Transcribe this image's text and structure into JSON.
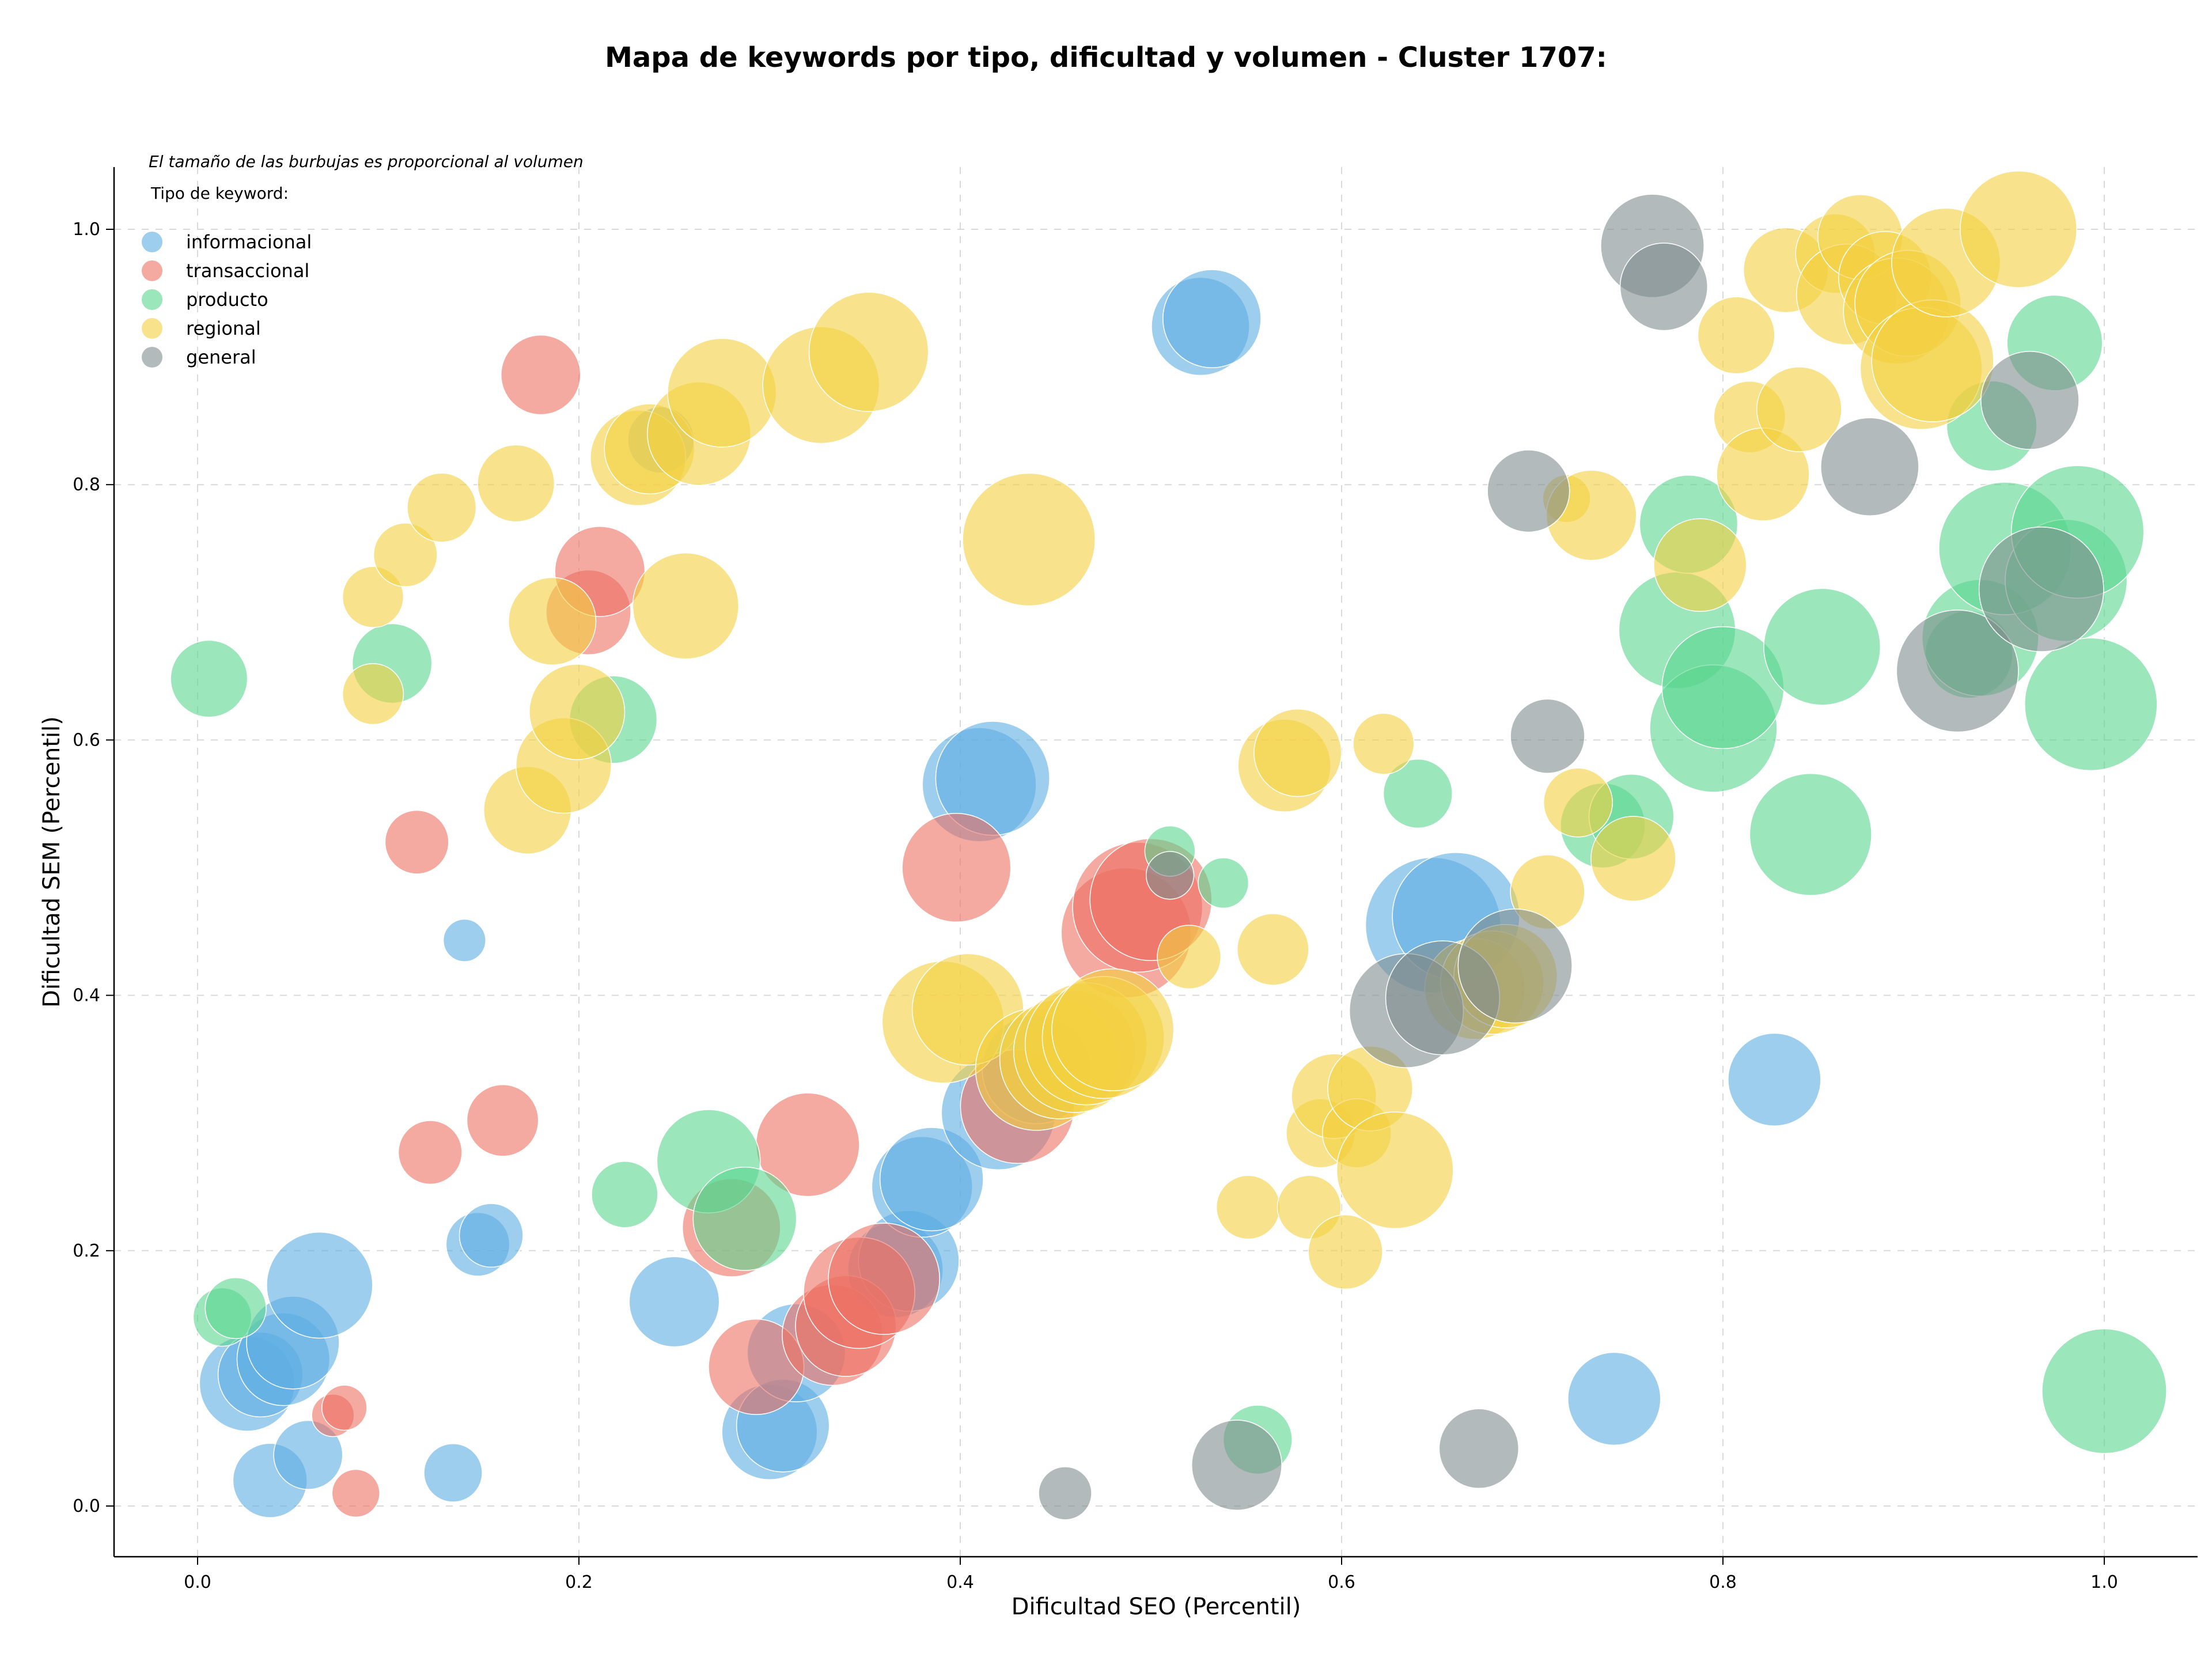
{
  "chart_data": {
    "type": "scatter",
    "title": "Mapa de keywords por tipo, dificultad y volumen - Cluster 1707:",
    "note": "El tamaño de las burbujas es proporcional al volumen",
    "xlabel": "Dificultad SEO (Percentil)",
    "ylabel": "Dificultad SEM (Percentil)",
    "xlim": [
      -0.04,
      1.05
    ],
    "ylim": [
      -0.04,
      1.05
    ],
    "xticks": [
      "0.0",
      "0.2",
      "0.4",
      "0.6",
      "0.8",
      "1.0"
    ],
    "yticks": [
      "0.0",
      "0.2",
      "0.4",
      "0.6",
      "0.8",
      "1.0"
    ],
    "grid": true,
    "legend": {
      "title": "Tipo de keyword:",
      "position": "top-left"
    },
    "series": [
      {
        "name": "informacional",
        "color": "#5DADE2",
        "points": [
          [
            0.026,
            0.096,
            3.6
          ],
          [
            0.033,
            0.103,
            3.2
          ],
          [
            0.045,
            0.115,
            3.5
          ],
          [
            0.05,
            0.128,
            3.5
          ],
          [
            0.064,
            0.173,
            4.0
          ],
          [
            0.038,
            0.02,
            2.8
          ],
          [
            0.058,
            0.04,
            2.6
          ],
          [
            0.134,
            0.026,
            2.2
          ],
          [
            0.147,
            0.205,
            2.4
          ],
          [
            0.154,
            0.212,
            2.4
          ],
          [
            0.14,
            0.443,
            1.6
          ],
          [
            0.243,
            0.835,
            2.5
          ],
          [
            0.25,
            0.16,
            3.4
          ],
          [
            0.3,
            0.058,
            3.6
          ],
          [
            0.307,
            0.063,
            3.5
          ],
          [
            0.314,
            0.12,
            3.7
          ],
          [
            0.366,
            0.185,
            3.6
          ],
          [
            0.373,
            0.192,
            3.8
          ],
          [
            0.38,
            0.25,
            3.8
          ],
          [
            0.385,
            0.256,
            3.9
          ],
          [
            0.42,
            0.308,
            4.3
          ],
          [
            0.44,
            0.342,
            4.1
          ],
          [
            0.41,
            0.565,
            4.3
          ],
          [
            0.417,
            0.57,
            4.3
          ],
          [
            0.526,
            0.924,
            3.7
          ],
          [
            0.532,
            0.93,
            3.7
          ],
          [
            0.648,
            0.455,
            5.1
          ],
          [
            0.66,
            0.462,
            4.8
          ],
          [
            0.743,
            0.084,
            3.5
          ],
          [
            0.827,
            0.334,
            3.5
          ]
        ]
      },
      {
        "name": "transaccional",
        "color": "#EC7063",
        "points": [
          [
            0.071,
            0.071,
            1.6
          ],
          [
            0.077,
            0.077,
            1.7
          ],
          [
            0.083,
            0.01,
            1.8
          ],
          [
            0.115,
            0.52,
            2.4
          ],
          [
            0.122,
            0.277,
            2.4
          ],
          [
            0.16,
            0.302,
            2.7
          ],
          [
            0.18,
            0.886,
            3.0
          ],
          [
            0.205,
            0.7,
            3.2
          ],
          [
            0.211,
            0.732,
            3.4
          ],
          [
            0.28,
            0.218,
            3.7
          ],
          [
            0.293,
            0.109,
            3.6
          ],
          [
            0.32,
            0.283,
            3.9
          ],
          [
            0.333,
            0.134,
            3.8
          ],
          [
            0.34,
            0.141,
            3.8
          ],
          [
            0.347,
            0.167,
            4.2
          ],
          [
            0.36,
            0.178,
            4.2
          ],
          [
            0.398,
            0.5,
            4.1
          ],
          [
            0.43,
            0.313,
            4.3
          ],
          [
            0.487,
            0.449,
            4.9
          ],
          [
            0.493,
            0.469,
            4.9
          ],
          [
            0.5,
            0.475,
            4.6
          ]
        ]
      },
      {
        "name": "producto",
        "color": "#58D68D",
        "points": [
          [
            0.006,
            0.648,
            2.9
          ],
          [
            0.013,
            0.148,
            2.2
          ],
          [
            0.02,
            0.155,
            2.3
          ],
          [
            0.102,
            0.66,
            3.0
          ],
          [
            0.218,
            0.616,
            3.3
          ],
          [
            0.224,
            0.244,
            2.5
          ],
          [
            0.268,
            0.27,
            3.9
          ],
          [
            0.287,
            0.225,
            3.9
          ],
          [
            0.51,
            0.513,
            1.9
          ],
          [
            0.538,
            0.488,
            1.9
          ],
          [
            0.556,
            0.052,
            2.6
          ],
          [
            0.64,
            0.558,
            2.6
          ],
          [
            0.737,
            0.533,
            3.2
          ],
          [
            0.752,
            0.54,
            3.2
          ],
          [
            0.776,
            0.686,
            4.4
          ],
          [
            0.782,
            0.769,
            3.7
          ],
          [
            0.795,
            0.609,
            4.8
          ],
          [
            0.8,
            0.641,
            4.6
          ],
          [
            0.846,
            0.526,
            4.6
          ],
          [
            0.852,
            0.673,
            4.4
          ],
          [
            0.929,
            0.667,
            3.3
          ],
          [
            0.935,
            0.68,
            4.4
          ],
          [
            0.941,
            0.846,
            3.4
          ],
          [
            0.948,
            0.75,
            5.0
          ],
          [
            0.974,
            0.911,
            3.6
          ],
          [
            0.98,
            0.725,
            4.6
          ],
          [
            0.986,
            0.763,
            5.0
          ],
          [
            0.993,
            0.628,
            5.0
          ],
          [
            1.0,
            0.09,
            4.7
          ]
        ]
      },
      {
        "name": "regional",
        "color": "#F4D03F",
        "points": [
          [
            0.092,
            0.712,
            2.3
          ],
          [
            0.092,
            0.636,
            2.3
          ],
          [
            0.109,
            0.745,
            2.4
          ],
          [
            0.128,
            0.782,
            2.6
          ],
          [
            0.167,
            0.801,
            2.9
          ],
          [
            0.173,
            0.545,
            3.3
          ],
          [
            0.186,
            0.693,
            3.3
          ],
          [
            0.192,
            0.58,
            3.6
          ],
          [
            0.199,
            0.622,
            3.6
          ],
          [
            0.231,
            0.821,
            3.6
          ],
          [
            0.237,
            0.828,
            3.4
          ],
          [
            0.256,
            0.705,
            4.0
          ],
          [
            0.263,
            0.84,
            3.9
          ],
          [
            0.275,
            0.872,
            4.1
          ],
          [
            0.327,
            0.878,
            4.4
          ],
          [
            0.352,
            0.904,
            4.5
          ],
          [
            0.391,
            0.379,
            4.6
          ],
          [
            0.404,
            0.389,
            4.2
          ],
          [
            0.436,
            0.757,
            5.0
          ],
          [
            0.44,
            0.342,
            4.6
          ],
          [
            0.452,
            0.35,
            4.5
          ],
          [
            0.46,
            0.356,
            4.6
          ],
          [
            0.466,
            0.362,
            4.6
          ],
          [
            0.475,
            0.367,
            4.6
          ],
          [
            0.48,
            0.373,
            4.6
          ],
          [
            0.52,
            0.43,
            2.4
          ],
          [
            0.551,
            0.234,
            2.4
          ],
          [
            0.564,
            0.436,
            2.7
          ],
          [
            0.57,
            0.58,
            3.5
          ],
          [
            0.577,
            0.59,
            3.3
          ],
          [
            0.583,
            0.234,
            2.4
          ],
          [
            0.589,
            0.292,
            2.6
          ],
          [
            0.596,
            0.321,
            3.2
          ],
          [
            0.602,
            0.199,
            2.8
          ],
          [
            0.608,
            0.292,
            2.6
          ],
          [
            0.615,
            0.327,
            3.2
          ],
          [
            0.622,
            0.597,
            2.3
          ],
          [
            0.628,
            0.263,
            4.4
          ],
          [
            0.67,
            0.405,
            3.8
          ],
          [
            0.679,
            0.41,
            3.9
          ],
          [
            0.686,
            0.415,
            3.9
          ],
          [
            0.708,
            0.481,
            2.8
          ],
          [
            0.718,
            0.789,
            1.8
          ],
          [
            0.724,
            0.551,
            2.6
          ],
          [
            0.731,
            0.776,
            3.4
          ],
          [
            0.753,
            0.507,
            3.2
          ],
          [
            0.788,
            0.737,
            3.5
          ],
          [
            0.807,
            0.917,
            2.9
          ],
          [
            0.814,
            0.853,
            2.7
          ],
          [
            0.821,
            0.808,
            3.5
          ],
          [
            0.833,
            0.968,
            3.2
          ],
          [
            0.84,
            0.859,
            3.2
          ],
          [
            0.859,
            0.981,
            3.0
          ],
          [
            0.865,
            0.949,
            3.8
          ],
          [
            0.872,
            0.994,
            3.2
          ],
          [
            0.885,
            0.962,
            3.5
          ],
          [
            0.891,
            0.936,
            4.0
          ],
          [
            0.897,
            0.942,
            4.0
          ],
          [
            0.904,
            0.891,
            4.6
          ],
          [
            0.91,
            0.897,
            4.6
          ],
          [
            0.917,
            0.974,
            4.1
          ],
          [
            0.955,
            1.0,
            4.4
          ]
        ]
      },
      {
        "name": "general",
        "color": "#7F8C8D",
        "points": [
          [
            0.455,
            0.01,
            2.0
          ],
          [
            0.51,
            0.494,
            1.8
          ],
          [
            0.545,
            0.032,
            3.4
          ],
          [
            0.634,
            0.388,
            4.3
          ],
          [
            0.653,
            0.398,
            4.3
          ],
          [
            0.672,
            0.045,
            3.0
          ],
          [
            0.691,
            0.423,
            4.3
          ],
          [
            0.698,
            0.795,
            3.1
          ],
          [
            0.708,
            0.603,
            2.8
          ],
          [
            0.763,
            0.987,
            3.9
          ],
          [
            0.769,
            0.955,
            3.3
          ],
          [
            0.877,
            0.814,
            3.7
          ],
          [
            0.923,
            0.654,
            4.6
          ],
          [
            0.961,
            0.866,
            3.7
          ],
          [
            0.967,
            0.718,
            4.7
          ]
        ]
      }
    ]
  }
}
